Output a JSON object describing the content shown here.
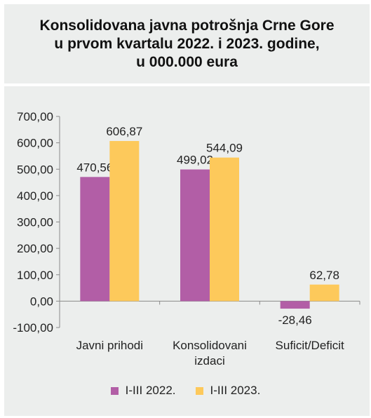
{
  "chart_data": {
    "type": "bar",
    "title": "Konsolidovana javna potrošnja Crne Gore\nu prvom kvartalu 2022. i 2023. godine,\nu 000.000 eura",
    "categories": [
      "Javni prihodi",
      "Konsolidovani\nizdaci",
      "Suficit/Deficit"
    ],
    "series": [
      {
        "name": "I-III 2022.",
        "color": "#b25ea6",
        "values": [
          470.56,
          499.02,
          -28.46
        ],
        "labels": [
          "470,56",
          "499,02",
          "-28,46"
        ]
      },
      {
        "name": "I-III 2023.",
        "color": "#fdc95b",
        "values": [
          606.87,
          544.09,
          62.78
        ],
        "labels": [
          "606,87",
          "544,09",
          "62,78"
        ]
      }
    ],
    "ylim": [
      -100,
      700
    ],
    "yticks": [
      700,
      600,
      500,
      400,
      300,
      200,
      100,
      0,
      -100
    ],
    "ytick_labels": [
      "700,00",
      "600,00",
      "500,00",
      "400,00",
      "300,00",
      "200,00",
      "100,00",
      "0,00",
      "-100,00"
    ],
    "grid": false,
    "legend": "bottom"
  }
}
